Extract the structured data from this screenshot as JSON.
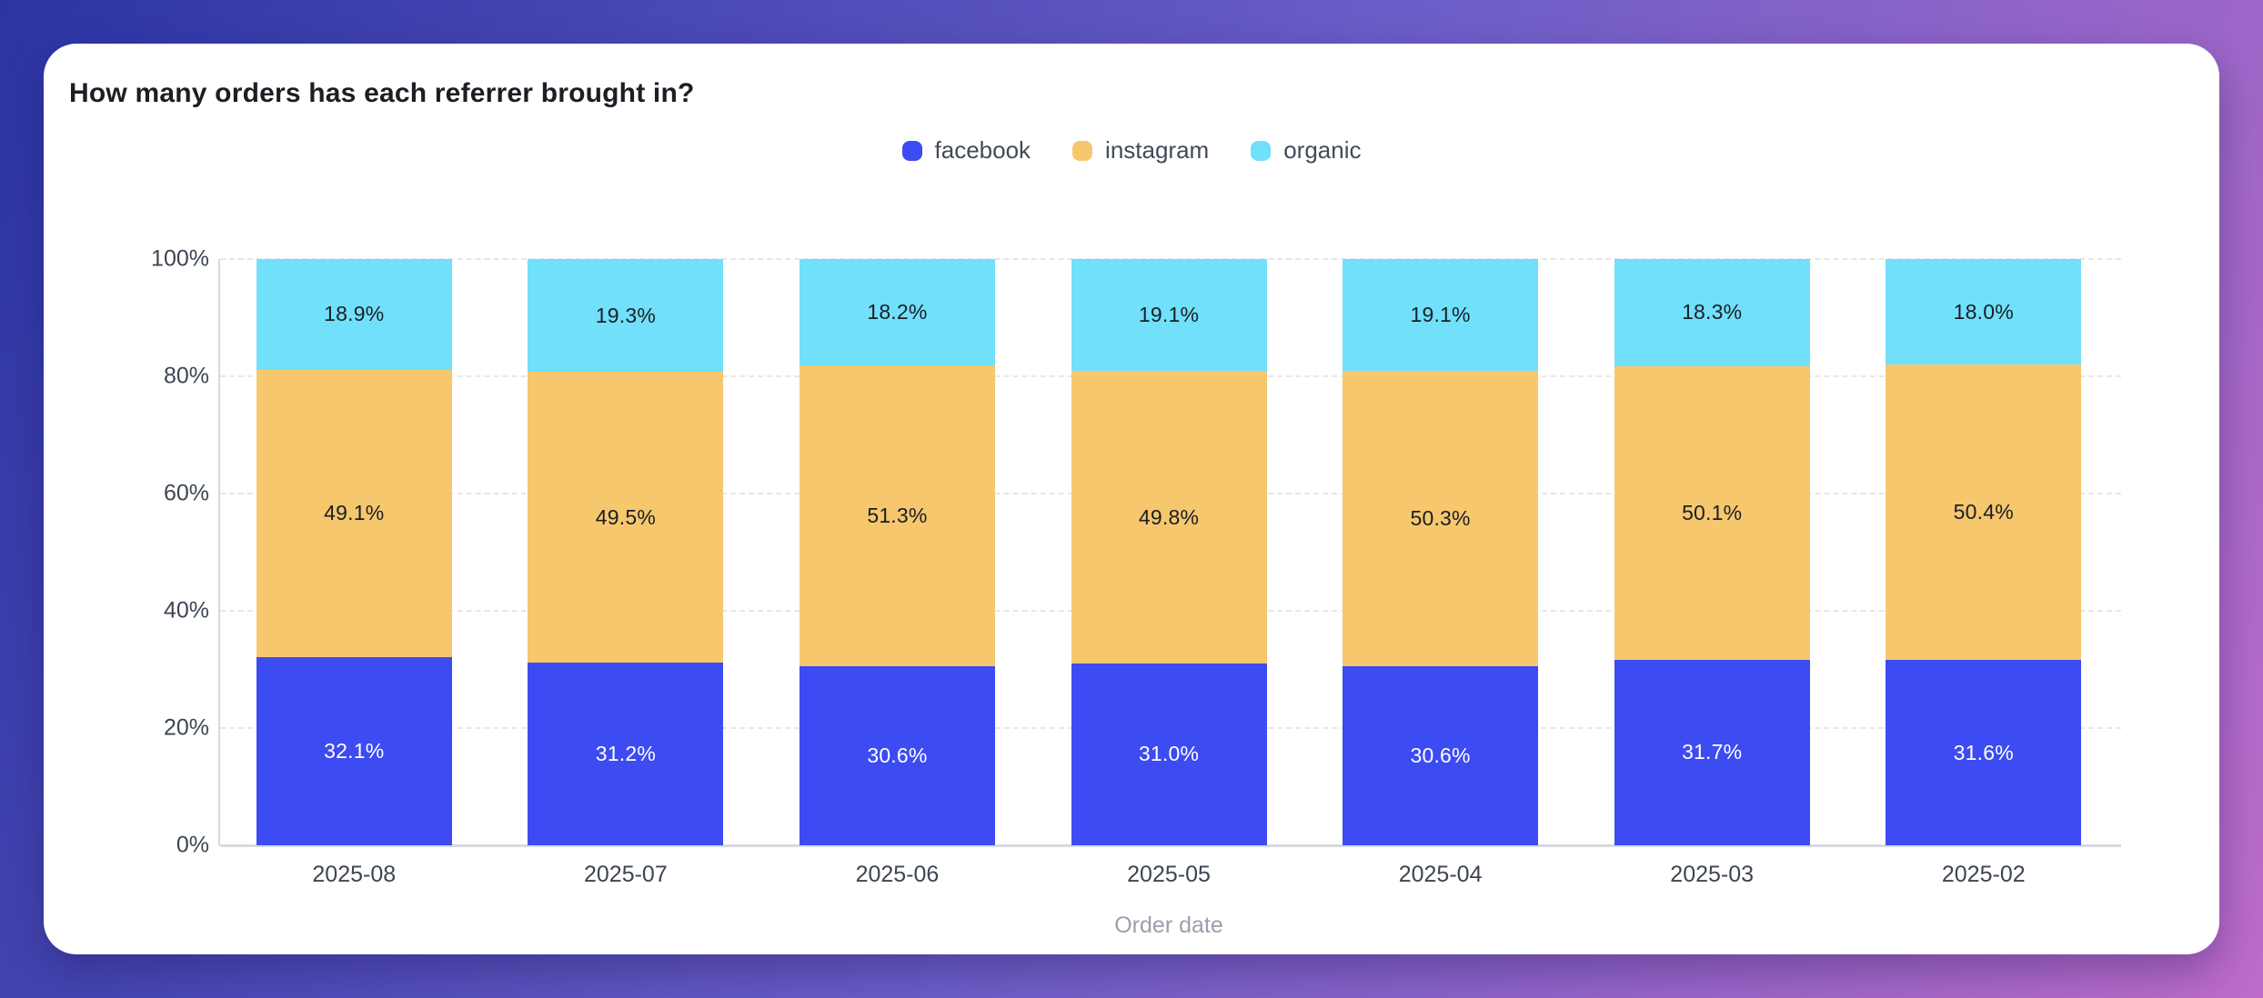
{
  "page": {
    "background_gradient": [
      "#2b35a4",
      "#6c5ec8",
      "#bd6cc9"
    ],
    "card_background": "#ffffff"
  },
  "chart_data": {
    "type": "bar",
    "variant": "stacked-percentage-column",
    "title": "How many orders has each referrer brought in?",
    "xlabel": "Order date",
    "ylabel": "",
    "categories": [
      "2025-08",
      "2025-07",
      "2025-06",
      "2025-05",
      "2025-04",
      "2025-03",
      "2025-02"
    ],
    "series": [
      {
        "name": "facebook",
        "color": "#3c4bf2",
        "label_color": "#ffffff",
        "values": [
          32.1,
          31.2,
          30.6,
          31.0,
          30.6,
          31.7,
          31.6
        ]
      },
      {
        "name": "instagram",
        "color": "#f6c76d",
        "label_color": "#1b1e24",
        "values": [
          49.1,
          49.5,
          51.3,
          49.8,
          50.3,
          50.1,
          50.4
        ]
      },
      {
        "name": "organic",
        "color": "#70e0fb",
        "label_color": "#1b1e24",
        "values": [
          18.9,
          19.3,
          18.2,
          19.1,
          19.1,
          18.3,
          18.0
        ]
      }
    ],
    "value_suffix": "%",
    "value_decimals": 1,
    "ylim": [
      0,
      100
    ],
    "y_ticks": [
      "100%",
      "80%",
      "60%",
      "40%",
      "20%",
      "0%"
    ],
    "grid": "horizontal-dashed",
    "legend_position": "top-center"
  }
}
